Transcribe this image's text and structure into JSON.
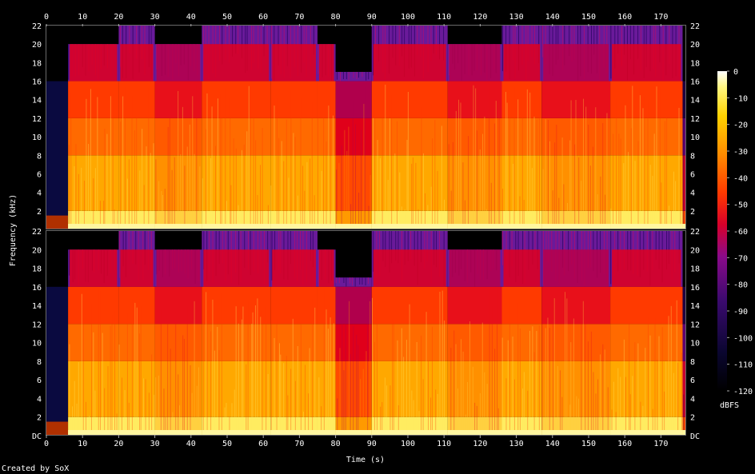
{
  "chart_data": {
    "type": "heatmap",
    "title": "",
    "xlabel": "Time (s)",
    "ylabel": "Frequency (kHz)",
    "credit": "Created by SoX",
    "colorbar_label": "dBFS",
    "x_range": [
      0,
      177
    ],
    "y_range_khz": [
      0,
      22
    ],
    "colorbar_range": [
      -120,
      0
    ],
    "x_ticks": [
      "0",
      "10",
      "20",
      "30",
      "40",
      "50",
      "60",
      "70",
      "80",
      "90",
      "100",
      "110",
      "120",
      "130",
      "140",
      "150",
      "160",
      "170"
    ],
    "y_ticks": [
      "DC",
      "2",
      "4",
      "6",
      "8",
      "10",
      "12",
      "14",
      "16",
      "18",
      "20",
      "22"
    ],
    "colorbar_ticks": [
      "0",
      "-10",
      "-20",
      "-30",
      "-40",
      "-50",
      "-60",
      "-70",
      "-80",
      "-90",
      "-100",
      "-110",
      "-120"
    ],
    "channels": [
      "left",
      "right"
    ],
    "segments": [
      {
        "start": 0,
        "end": 6,
        "level": "silence-low"
      },
      {
        "start": 6,
        "end": 20,
        "level": "loud",
        "hf_cutoff_khz": 20
      },
      {
        "start": 20,
        "end": 30,
        "level": "loud",
        "hf_cutoff_khz": 22
      },
      {
        "start": 30,
        "end": 43,
        "level": "medium",
        "hf_cutoff_khz": 20
      },
      {
        "start": 43,
        "end": 62,
        "level": "loud",
        "hf_cutoff_khz": 22
      },
      {
        "start": 62,
        "end": 75,
        "level": "loud",
        "hf_cutoff_khz": 22
      },
      {
        "start": 75,
        "end": 80,
        "level": "loud",
        "hf_cutoff_khz": 20
      },
      {
        "start": 80,
        "end": 90,
        "level": "quiet",
        "hf_cutoff_khz": 17
      },
      {
        "start": 90,
        "end": 111,
        "level": "loud",
        "hf_cutoff_khz": 22
      },
      {
        "start": 111,
        "end": 126,
        "level": "medium",
        "hf_cutoff_khz": 20
      },
      {
        "start": 126,
        "end": 137,
        "level": "loud",
        "hf_cutoff_khz": 22
      },
      {
        "start": 137,
        "end": 156,
        "level": "medium",
        "hf_cutoff_khz": 22
      },
      {
        "start": 156,
        "end": 176,
        "level": "loud",
        "hf_cutoff_khz": 22
      },
      {
        "start": 176,
        "end": 177,
        "level": "fade"
      }
    ]
  }
}
